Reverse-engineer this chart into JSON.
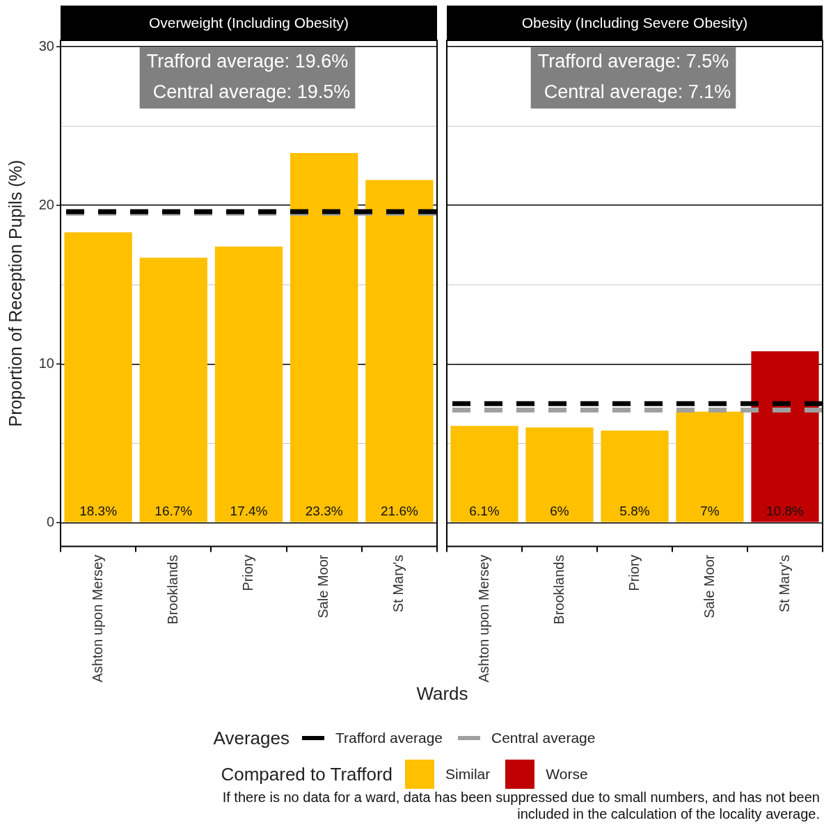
{
  "chart_data": [
    {
      "type": "bar",
      "title": "Overweight (Including Obesity)",
      "ylabel": "Proportion of Reception Pupils (%)",
      "xlabel": "Wards",
      "categories": [
        "Ashton upon Mersey",
        "Brooklands",
        "Priory",
        "Sale Moor",
        "St Mary's"
      ],
      "stacked": true,
      "series": [
        {
          "color": "#ffc000",
          "values": [
            18.3,
            16.7,
            17.4,
            23.3,
            21.6
          ],
          "value_labels": [
            "18.3%",
            "16.7%",
            "17.4%",
            "23.3%",
            "21.6%"
          ]
        }
      ],
      "ylim": [
        -1.5,
        30.4
      ],
      "yticks": [
        0,
        {
          "value": 5,
          "label": null
        },
        10,
        {
          "value": 15,
          "label": null
        },
        20,
        {
          "value": 25,
          "label": null
        },
        30
      ],
      "grid": "y",
      "ref_lines": [
        {
          "axis": "y",
          "value": 19.5,
          "label": "Central average",
          "color": "#a0a0a0",
          "line_style": "dashed"
        },
        {
          "axis": "y",
          "value": 19.6,
          "label": "Trafford average",
          "color": "#000000",
          "line_style": "dashed"
        }
      ],
      "annotations": [
        "Trafford average: 19.6%",
        "Central average: 19.5%"
      ],
      "legend": "bottom",
      "legend_title": "Averages"
    },
    {
      "type": "bar",
      "title": "Obesity (Including Severe Obesity)",
      "categories": [
        "Ashton upon Mersey",
        "Brooklands",
        "Priory",
        "Sale Moor",
        "St Mary's"
      ],
      "stacked": true,
      "series": [
        {
          "name": "Similar",
          "color": "#ffc000",
          "values": [
            6.1,
            6,
            5.8,
            7,
            null
          ],
          "value_labels": [
            "6.1%",
            "6%",
            "5.8%",
            "7%",
            null
          ]
        },
        {
          "name": "Worse",
          "color": "#c00000",
          "values": [
            null,
            null,
            null,
            null,
            10.8
          ],
          "value_labels": [
            null,
            null,
            null,
            null,
            "10.8%"
          ]
        }
      ],
      "ylim": [
        -1.5,
        30.4
      ],
      "yticks": [
        0,
        {
          "value": 5,
          "label": null
        },
        10,
        {
          "value": 15,
          "label": null
        },
        20,
        {
          "value": 25,
          "label": null
        },
        30
      ],
      "grid": "y",
      "tick_labels": "x",
      "ref_lines": [
        {
          "axis": "y",
          "value": 7.1,
          "color": "#a0a0a0",
          "line_style": "dashed"
        },
        {
          "axis": "y",
          "value": 7.5,
          "color": "#000000",
          "line_style": "dashed"
        }
      ],
      "annotations": [
        "Trafford average: 7.5%",
        "Central average: 7.1%",
        "If there is no data for a ward, data has been suppressed due to small numbers, and has not been included in the calculation of the locality average."
      ],
      "legend": "bottom",
      "legend_title": "Compared to Trafford"
    }
  ]
}
